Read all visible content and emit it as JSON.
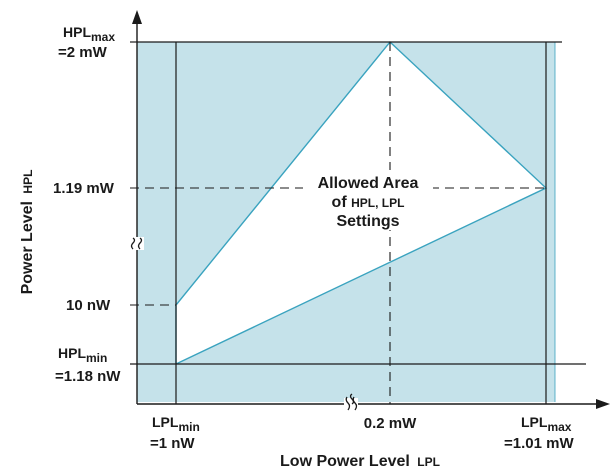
{
  "diagram": {
    "y_axis": {
      "title_main": "Power Level",
      "title_sub": "HPL"
    },
    "x_axis": {
      "title_main": "Low Power Level",
      "title_sub": "LPL"
    },
    "y_labels": {
      "hpl_max_main": "HPL",
      "hpl_max_sub": "max",
      "hpl_max_value": "=2 mW",
      "mid": "1.19 mW",
      "low": "10 nW",
      "hpl_min_main": "HPL",
      "hpl_min_sub": "min",
      "hpl_min_value": "=1.18 nW"
    },
    "x_labels": {
      "lpl_min_main": "LPL",
      "lpl_min_sub": "min",
      "lpl_min_value": "=1 nW",
      "mid": "0.2 mW",
      "lpl_max_main": "LPL",
      "lpl_max_sub": "max",
      "lpl_max_value": "=1.01 mW"
    },
    "region_label": {
      "line1": "Allowed Area",
      "line2_prefix": "of",
      "line2_vars": "HPL, LPL",
      "line3": "Settings"
    },
    "colors": {
      "shade": "#c5e2ea",
      "line": "#3aa3bf",
      "ink": "#1a1a1a",
      "background": "#ffffff"
    }
  }
}
